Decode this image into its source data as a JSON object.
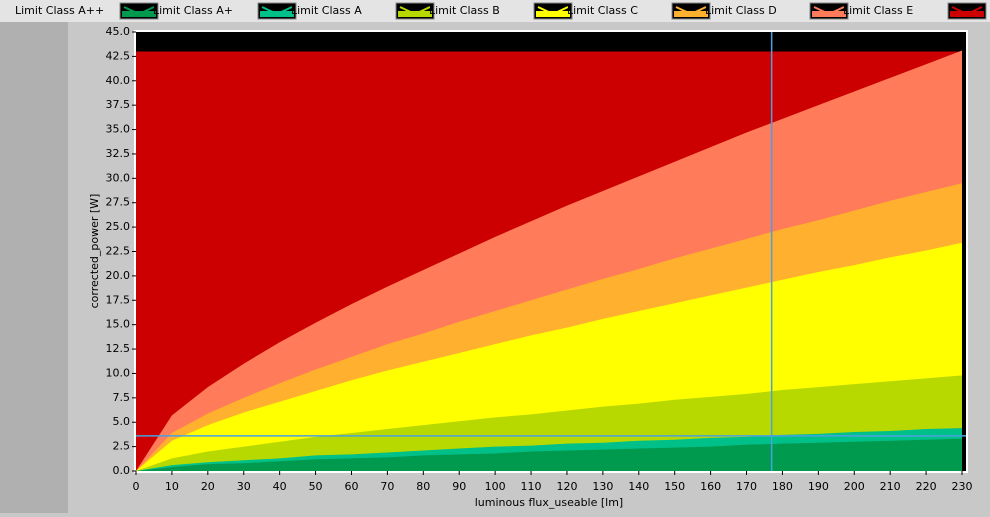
{
  "chart_data": {
    "type": "area",
    "x_label": "luminous flux_useable [lm]",
    "y_label": "corrected_power [W]",
    "x": [
      0,
      10,
      20,
      30,
      40,
      50,
      60,
      70,
      80,
      90,
      100,
      110,
      120,
      130,
      140,
      150,
      160,
      170,
      180,
      190,
      200,
      210,
      220,
      230
    ],
    "series": [
      {
        "name": "Limit Class A++",
        "color": "#009a4e",
        "values": [
          0,
          0.4,
          0.7,
          0.8,
          1.0,
          1.2,
          1.3,
          1.4,
          1.6,
          1.7,
          1.8,
          2.0,
          2.1,
          2.2,
          2.3,
          2.4,
          2.5,
          2.7,
          2.8,
          2.9,
          3.0,
          3.1,
          3.2,
          3.3
        ]
      },
      {
        "name": "Limit Class A+",
        "color": "#00c08a",
        "values": [
          0,
          0.6,
          0.9,
          1.1,
          1.3,
          1.6,
          1.7,
          1.9,
          2.1,
          2.3,
          2.5,
          2.6,
          2.8,
          2.9,
          3.1,
          3.2,
          3.4,
          3.5,
          3.7,
          3.8,
          4.0,
          4.1,
          4.3,
          4.4
        ]
      },
      {
        "name": "Limit Class A",
        "color": "#b8d900",
        "values": [
          0,
          1.3,
          2.0,
          2.5,
          3.0,
          3.5,
          3.9,
          4.3,
          4.7,
          5.1,
          5.5,
          5.8,
          6.2,
          6.6,
          6.9,
          7.3,
          7.6,
          7.9,
          8.3,
          8.6,
          8.9,
          9.2,
          9.5,
          9.8
        ]
      },
      {
        "name": "Limit Class B",
        "color": "#ffff00",
        "values": [
          0,
          3.1,
          4.7,
          6.0,
          7.1,
          8.2,
          9.3,
          10.3,
          11.2,
          12.1,
          13.0,
          13.9,
          14.7,
          15.6,
          16.4,
          17.2,
          18.0,
          18.8,
          19.6,
          20.4,
          21.1,
          21.9,
          22.6,
          23.4
        ]
      },
      {
        "name": "Limit Class C",
        "color": "#ffb02e",
        "values": [
          0,
          3.9,
          5.9,
          7.5,
          9.0,
          10.4,
          11.7,
          13.0,
          14.1,
          15.3,
          16.4,
          17.5,
          18.6,
          19.7,
          20.7,
          21.8,
          22.8,
          23.8,
          24.8,
          25.7,
          26.7,
          27.7,
          28.6,
          29.5
        ]
      },
      {
        "name": "Limit Class D",
        "color": "#ff7b5a",
        "values": [
          0,
          5.7,
          8.6,
          11.0,
          13.2,
          15.2,
          17.1,
          18.9,
          20.6,
          22.3,
          24.0,
          25.6,
          27.2,
          28.7,
          30.2,
          31.7,
          33.2,
          34.7,
          36.1,
          37.5,
          38.9,
          40.3,
          41.7,
          43.1
        ]
      },
      {
        "name": "Limit Class E",
        "color": "#cc0000",
        "values": [
          43,
          43,
          43,
          43,
          43,
          43,
          43,
          43,
          43,
          43,
          43,
          43,
          43,
          43,
          43,
          43,
          43,
          43,
          43,
          43,
          43,
          43,
          43,
          43
        ]
      }
    ],
    "cursor": {
      "x": 177,
      "y": 3.6,
      "color": "#4aa0e0"
    },
    "background": "#000000",
    "xlim": [
      0,
      230
    ],
    "ylim": [
      0,
      45
    ],
    "xticks": [
      0,
      10,
      20,
      30,
      40,
      50,
      60,
      70,
      80,
      90,
      100,
      110,
      120,
      130,
      140,
      150,
      160,
      170,
      180,
      190,
      200,
      210,
      220,
      230
    ],
    "yticks": [
      {
        "value": 0,
        "label": "0.0"
      },
      2.5,
      {
        "value": 5,
        "label": "5.0"
      },
      7.5,
      {
        "value": 10,
        "label": "10.0"
      },
      12.5,
      {
        "value": 15,
        "label": "15.0"
      },
      17.5,
      {
        "value": 20,
        "label": "20.0"
      },
      22.5,
      {
        "value": 25,
        "label": "25.0"
      },
      27.5,
      {
        "value": 30,
        "label": "30.0"
      },
      32.5,
      {
        "value": 35,
        "label": "35.0"
      },
      37.5,
      {
        "value": 40,
        "label": "40.0"
      },
      42.5,
      {
        "value": 45,
        "label": "45.0"
      }
    ]
  }
}
